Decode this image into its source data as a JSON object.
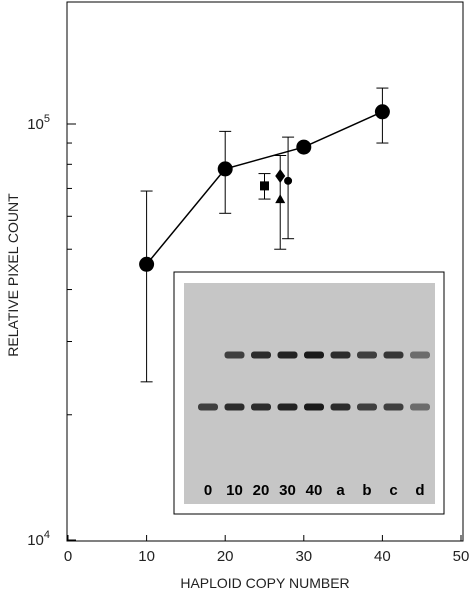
{
  "chart_data": {
    "type": "scatter",
    "xlabel": "HAPLOID COPY NUMBER",
    "ylabel": "RELATIVE PIXEL COUNT",
    "x_ticks": [
      0,
      10,
      20,
      30,
      40,
      50
    ],
    "xlim": [
      0,
      50
    ],
    "y_scale": "log",
    "ylim": [
      10000,
      200000
    ],
    "y_tick_labels": [
      {
        "value": 10000,
        "base": "10",
        "exp": "4"
      },
      {
        "value": 100000,
        "base": "10",
        "exp": "5"
      }
    ],
    "series": [
      {
        "marker": "circle",
        "line": true,
        "points": [
          {
            "x": 10,
            "y": 46000,
            "err_low": 24000,
            "err_high": 69000
          },
          {
            "x": 20,
            "y": 78000,
            "err_low": 61000,
            "err_high": 96000
          },
          {
            "x": 30,
            "y": 88000,
            "err_low": null,
            "err_high": null
          },
          {
            "x": 40,
            "y": 107000,
            "err_low": 90000,
            "err_high": 122000
          }
        ]
      },
      {
        "marker": "square",
        "line": false,
        "points": [
          {
            "x": 25,
            "y": 71000,
            "err_low": 66000,
            "err_high": 76000
          }
        ]
      },
      {
        "marker": "diamond",
        "line": false,
        "points": [
          {
            "x": 27,
            "y": 75000,
            "err_low": 50000,
            "err_high": 84000
          }
        ]
      },
      {
        "marker": "triangle",
        "line": false,
        "points": [
          {
            "x": 27,
            "y": 66000,
            "err_low": null,
            "err_high": null
          }
        ]
      },
      {
        "marker": "small-circle",
        "line": false,
        "points": [
          {
            "x": 28,
            "y": 73000,
            "err_low": 53000,
            "err_high": 93000
          }
        ]
      }
    ],
    "inset": {
      "type": "gel",
      "lane_labels": [
        "0",
        "10",
        "20",
        "30",
        "40",
        "a",
        "b",
        "c",
        "d"
      ],
      "upper_band_intensity": [
        0,
        0.75,
        0.85,
        0.9,
        0.95,
        0.85,
        0.75,
        0.8,
        0.5
      ],
      "lower_band_intensity": [
        0.75,
        0.85,
        0.85,
        0.9,
        0.95,
        0.85,
        0.75,
        0.75,
        0.5
      ]
    }
  }
}
